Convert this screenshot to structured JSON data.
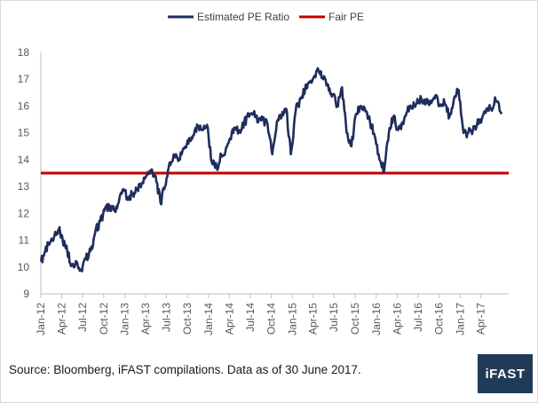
{
  "chart_data": {
    "type": "line",
    "legend_position": "top",
    "grid": false,
    "ylim": [
      9,
      18
    ],
    "yticks": [
      9,
      10,
      11,
      12,
      13,
      14,
      15,
      16,
      17,
      18
    ],
    "xticks": [
      "Jan-12",
      "Apr-12",
      "Jul-12",
      "Oct-12",
      "Jan-13",
      "Apr-13",
      "Jul-13",
      "Oct-13",
      "Jan-14",
      "Apr-14",
      "Jul-14",
      "Oct-14",
      "Jan-15",
      "Apr-15",
      "Jul-15",
      "Oct-15",
      "Jan-16",
      "Apr-16",
      "Jul-16",
      "Oct-16",
      "Jan-17",
      "Apr-17"
    ],
    "series": [
      {
        "name": "Estimated PE Ratio",
        "color": "#1f2d5c",
        "x": [
          "2012-01-02",
          "2012-01-20",
          "2012-02-10",
          "2012-03-01",
          "2012-03-20",
          "2012-04-05",
          "2012-04-25",
          "2012-05-15",
          "2012-06-05",
          "2012-06-25",
          "2012-07-15",
          "2012-08-05",
          "2012-08-25",
          "2012-09-15",
          "2012-10-05",
          "2012-10-25",
          "2012-11-15",
          "2012-12-05",
          "2012-12-25",
          "2013-01-15",
          "2013-02-05",
          "2013-02-25",
          "2013-03-15",
          "2013-04-05",
          "2013-04-25",
          "2013-05-15",
          "2013-06-05",
          "2013-06-25",
          "2013-07-15",
          "2013-08-05",
          "2013-08-25",
          "2013-09-15",
          "2013-10-05",
          "2013-10-25",
          "2013-11-15",
          "2013-12-05",
          "2013-12-25",
          "2014-01-15",
          "2014-02-05",
          "2014-02-25",
          "2014-03-15",
          "2014-04-05",
          "2014-04-25",
          "2014-05-15",
          "2014-06-05",
          "2014-06-25",
          "2014-07-15",
          "2014-08-05",
          "2014-08-25",
          "2014-09-15",
          "2014-10-05",
          "2014-10-25",
          "2014-11-15",
          "2014-12-05",
          "2014-12-25",
          "2015-01-15",
          "2015-02-05",
          "2015-02-25",
          "2015-03-15",
          "2015-04-05",
          "2015-04-25",
          "2015-05-15",
          "2015-06-05",
          "2015-06-25",
          "2015-07-15",
          "2015-08-05",
          "2015-08-25",
          "2015-09-15",
          "2015-10-05",
          "2015-10-25",
          "2015-11-15",
          "2015-12-05",
          "2015-12-25",
          "2016-01-15",
          "2016-02-05",
          "2016-02-25",
          "2016-03-15",
          "2016-04-05",
          "2016-04-25",
          "2016-05-15",
          "2016-06-05",
          "2016-06-25",
          "2016-07-15",
          "2016-08-05",
          "2016-08-25",
          "2016-09-15",
          "2016-10-05",
          "2016-10-25",
          "2016-11-15",
          "2016-12-05",
          "2016-12-25",
          "2017-01-15",
          "2017-02-05",
          "2017-02-25",
          "2017-03-15",
          "2017-04-05",
          "2017-04-25",
          "2017-05-15",
          "2017-06-05",
          "2017-06-30"
        ],
        "values": [
          10.2,
          10.6,
          10.9,
          11.2,
          11.4,
          11.0,
          10.6,
          10.1,
          10.2,
          9.9,
          10.3,
          10.6,
          11.3,
          11.7,
          12.1,
          12.3,
          12.1,
          12.4,
          12.9,
          12.6,
          12.7,
          12.9,
          13.1,
          13.4,
          13.6,
          13.4,
          12.4,
          13.0,
          13.9,
          14.1,
          14.0,
          14.4,
          14.6,
          14.9,
          15.2,
          15.1,
          15.3,
          13.9,
          13.7,
          14.2,
          14.3,
          14.8,
          15.2,
          15.1,
          15.4,
          15.6,
          15.7,
          15.4,
          15.5,
          15.3,
          14.2,
          15.4,
          15.6,
          15.9,
          14.2,
          15.8,
          16.3,
          16.6,
          16.9,
          17.1,
          17.3,
          17.0,
          16.8,
          16.4,
          16.0,
          16.7,
          15.0,
          14.5,
          15.7,
          16.0,
          15.8,
          15.4,
          14.9,
          14.0,
          13.6,
          15.0,
          15.6,
          15.1,
          15.4,
          15.8,
          15.9,
          16.1,
          16.3,
          16.2,
          16.2,
          16.4,
          16.0,
          16.1,
          15.6,
          16.3,
          16.6,
          15.0,
          15.0,
          15.1,
          15.3,
          15.5,
          15.9,
          15.9,
          16.2,
          15.7
        ]
      },
      {
        "name": "Fair PE",
        "color": "#c00000",
        "value": 13.5
      }
    ],
    "ylabel": "",
    "xlabel": ""
  },
  "footer": {
    "source": "Source: Bloomberg, iFAST compilations. Data as of 30 June 2017.",
    "brand": "iFAST"
  }
}
